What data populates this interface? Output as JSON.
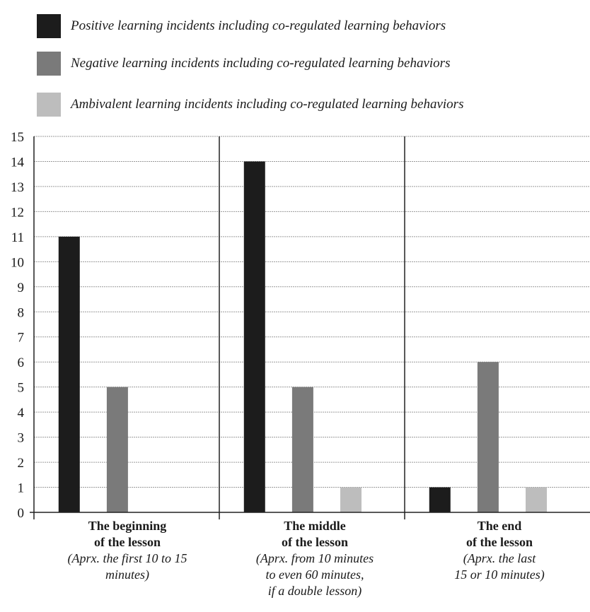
{
  "colors": {
    "positive": "#1c1c1c",
    "negative": "#7a7a7a",
    "ambivalent": "#bdbdbd",
    "grid": "#9a9a9a",
    "axis": "#222222"
  },
  "legend": {
    "positive": "Positive learning incidents including co-regulated learning behaviors",
    "negative": "Negative learning incidents including co-regulated learning behaviors",
    "ambivalent": "Ambivalent learning incidents including co-regulated learning behaviors"
  },
  "categories": [
    {
      "title_line1": "The beginning",
      "title_line2": "of the lesson",
      "note_line1": "(Aprx. the first 10 to 15",
      "note_line2": "minutes)",
      "note_line3": ""
    },
    {
      "title_line1": "The middle",
      "title_line2": "of the lesson",
      "note_line1": "(Aprx. from 10 minutes",
      "note_line2": "to even 60 minutes,",
      "note_line3": "if a double lesson)"
    },
    {
      "title_line1": "The end",
      "title_line2": "of the lesson",
      "note_line1": "(Aprx. the last",
      "note_line2": "15 or 10 minutes)",
      "note_line3": ""
    }
  ],
  "chart_data": {
    "type": "bar",
    "categories": [
      "The beginning of the lesson",
      "The middle of the lesson",
      "The end of the lesson"
    ],
    "series": [
      {
        "name": "Positive learning incidents including co-regulated learning behaviors",
        "values": [
          11,
          14,
          1
        ]
      },
      {
        "name": "Negative learning incidents including co-regulated learning behaviors",
        "values": [
          5,
          5,
          6
        ]
      },
      {
        "name": "Ambivalent learning incidents including co-regulated learning behaviors",
        "values": [
          0,
          1,
          1
        ]
      }
    ],
    "ylim": [
      0,
      15
    ],
    "yticks": [
      "0",
      "1",
      "2",
      "3",
      "4",
      "5",
      "6",
      "7",
      "8",
      "9",
      "10",
      "11",
      "12",
      "13",
      "14",
      "15"
    ],
    "grid": true,
    "legend_position": "top",
    "xlabel": "",
    "ylabel": "",
    "title": ""
  }
}
